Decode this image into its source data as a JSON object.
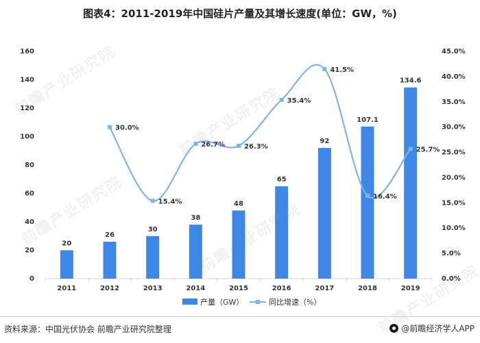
{
  "title": "图表4：2011-2019年中国硅片产量及其增长速度(单位：GW，%)",
  "source": "资料来源：中国光伏协会 前瞻产业研究院整理",
  "brand": "@前瞻经济学人APP",
  "watermark": "前瞻产业研究院",
  "colors": {
    "bar": "#3f87e4",
    "line": "#7fb2ee",
    "axis": "#d0d0d0",
    "text": "#333333"
  },
  "chart_data": {
    "type": "bar",
    "categories": [
      "2011",
      "2012",
      "2013",
      "2014",
      "2015",
      "2016",
      "2017",
      "2018",
      "2019"
    ],
    "series": [
      {
        "name": "产量（GW）",
        "type": "bar",
        "axis": "left",
        "values": [
          20,
          26,
          30,
          38,
          48,
          65,
          92,
          107.1,
          134.6
        ],
        "labels": [
          "20",
          "26",
          "30",
          "38",
          "48",
          "65",
          "92",
          "107.1",
          "134.6"
        ]
      },
      {
        "name": "同比增速（%）",
        "type": "line",
        "axis": "right",
        "smooth": true,
        "values": [
          null,
          30.0,
          15.4,
          26.7,
          26.3,
          35.4,
          41.5,
          16.4,
          25.7
        ],
        "labels": [
          "",
          "30.0%",
          "15.4%",
          "26.7%",
          "26.3%",
          "35.4%",
          "41.5%",
          "16.4%",
          "25.7%"
        ]
      }
    ],
    "ylim_left": [
      0,
      160
    ],
    "yticks_left": [
      "0",
      "20",
      "40",
      "60",
      "80",
      "100",
      "120",
      "140",
      "160"
    ],
    "ylim_right": [
      0,
      45
    ],
    "yticks_right": [
      "0.0%",
      "5.0%",
      "10.0%",
      "15.0%",
      "20.0%",
      "25.0%",
      "30.0%",
      "35.0%",
      "40.0%",
      "45.0%"
    ],
    "grid": false,
    "legend": "bottom"
  }
}
